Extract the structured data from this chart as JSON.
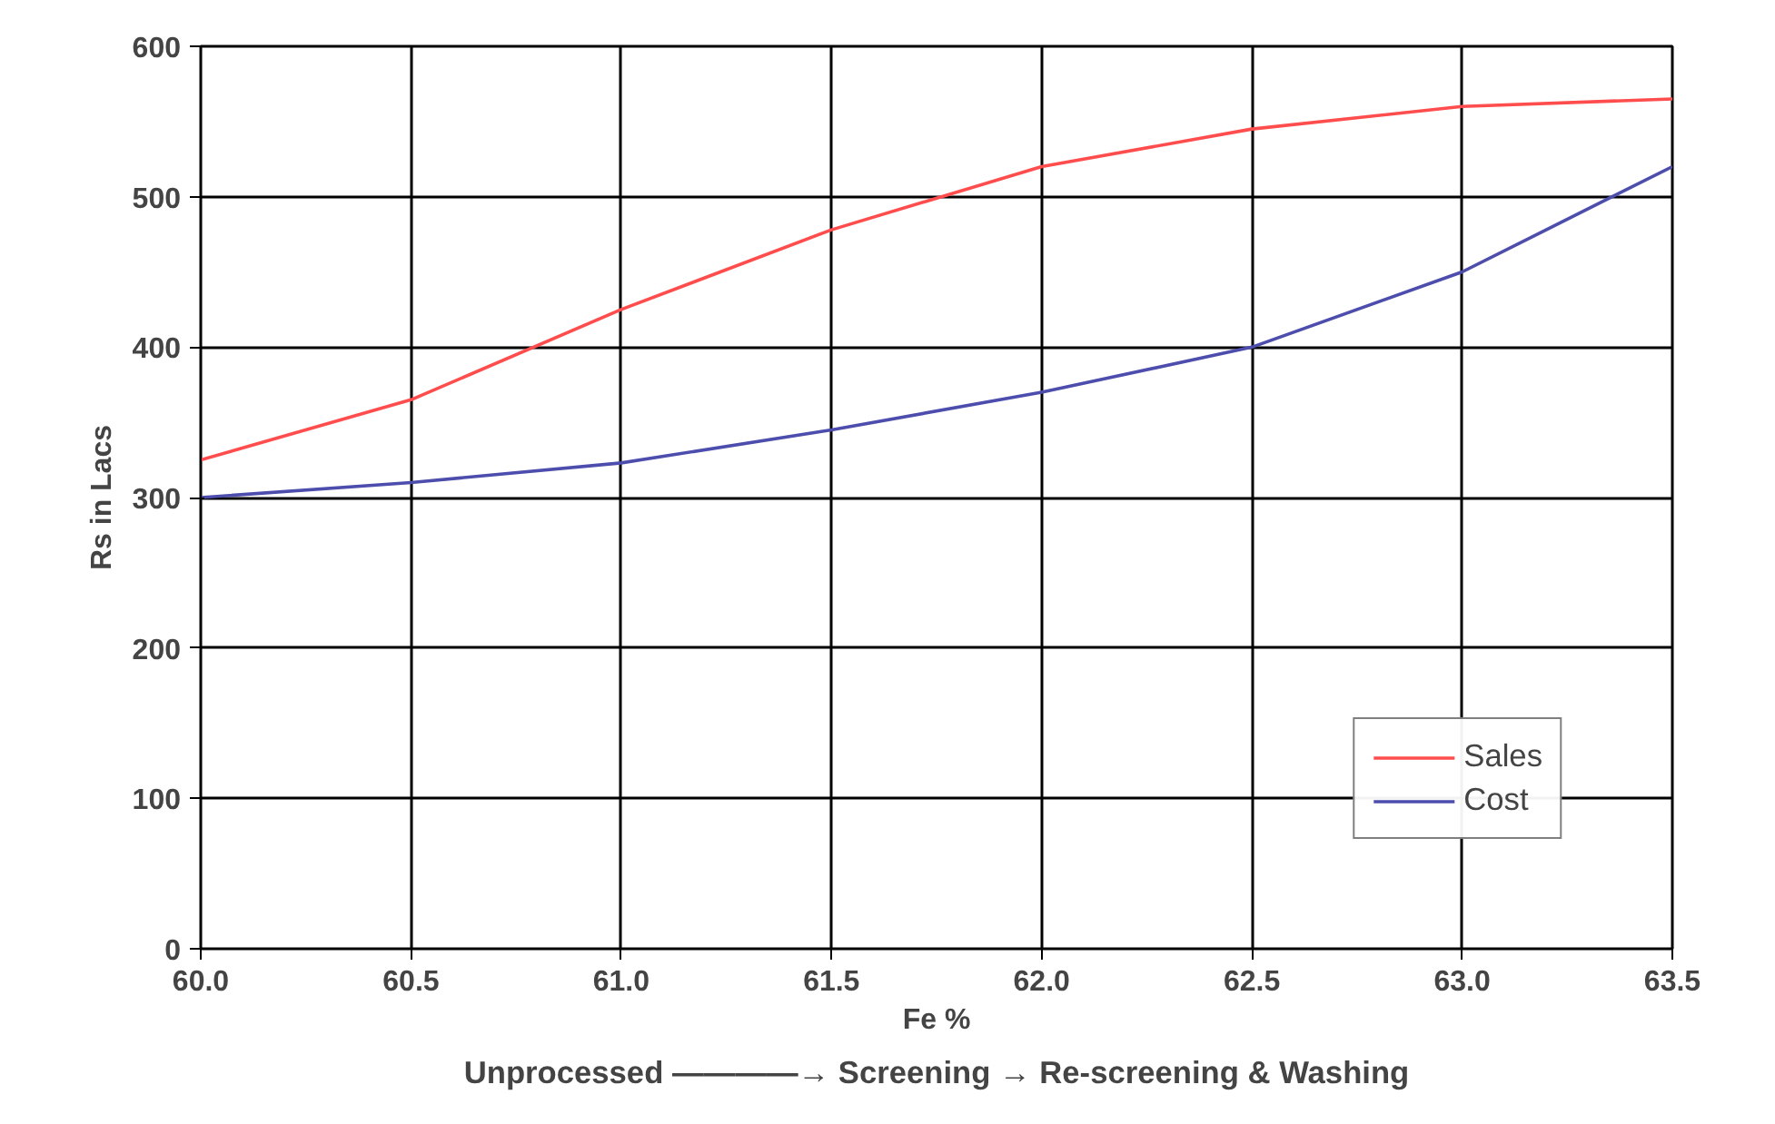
{
  "chart_data": {
    "type": "line",
    "xlabel": "Fe %",
    "ylabel": "Rs in Lacs",
    "x": [
      60.0,
      60.5,
      61.0,
      61.5,
      62.0,
      62.5,
      63.0,
      63.5
    ],
    "series": [
      {
        "name": "Sales",
        "color": "#ff4d4d",
        "values": [
          325,
          365,
          425,
          478,
          520,
          545,
          560,
          565
        ]
      },
      {
        "name": "Cost",
        "color": "#4d4dad",
        "values": [
          300,
          310,
          323,
          345,
          370,
          400,
          450,
          520
        ]
      }
    ],
    "xlim": [
      60.0,
      63.5
    ],
    "xticks": [
      {
        "value": 60,
        "label": "60.0"
      },
      {
        "value": 60.5,
        "label": "60.5"
      },
      {
        "value": 61,
        "label": "61.0"
      },
      {
        "value": 61.5,
        "label": "61.5"
      },
      {
        "value": 62,
        "label": "62.0"
      },
      {
        "value": 62.5,
        "label": "62.5"
      },
      {
        "value": 63,
        "label": "63.0"
      },
      {
        "value": 63.5,
        "label": "63.5"
      }
    ],
    "ylim": [
      0,
      600
    ],
    "yticks": [
      0,
      100,
      200,
      300,
      400,
      500,
      600
    ],
    "grid": true,
    "legend": "bottom right",
    "marker": "none",
    "line_style": "solid",
    "annotations": [
      "Unprocessed ————→ Screening → Re-screening & Washing"
    ]
  }
}
